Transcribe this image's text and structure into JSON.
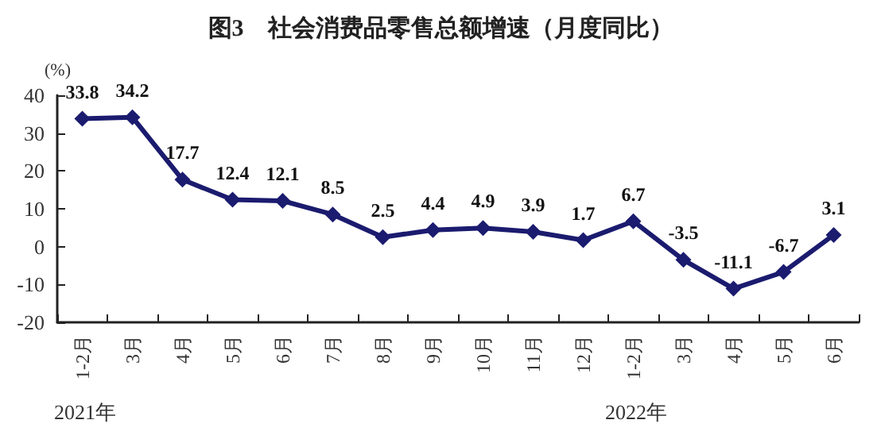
{
  "chart_data": {
    "type": "line",
    "title": "图3　社会消费品零售总额增速（月度同比）",
    "ylabel": "(%)",
    "categories": [
      "1-2月",
      "3月",
      "4月",
      "5月",
      "6月",
      "7月",
      "8月",
      "9月",
      "10月",
      "11月",
      "12月",
      "1-2月",
      "3月",
      "4月",
      "5月",
      "6月"
    ],
    "series": [
      {
        "color": "#1b1b6f",
        "values": [
          33.8,
          34.2,
          17.7,
          12.4,
          12.1,
          8.5,
          2.5,
          4.4,
          4.9,
          3.9,
          1.7,
          6.7,
          -3.5,
          -11.1,
          -6.7,
          3.1
        ]
      }
    ],
    "ylim": [
      -20,
      40
    ],
    "yticks": [
      -20,
      -10,
      0,
      10,
      20,
      30,
      40
    ],
    "grid": false,
    "marker": "diamond",
    "line_style": "solid",
    "data_labels": true,
    "annotations": [
      "2021年",
      "2022年"
    ]
  }
}
